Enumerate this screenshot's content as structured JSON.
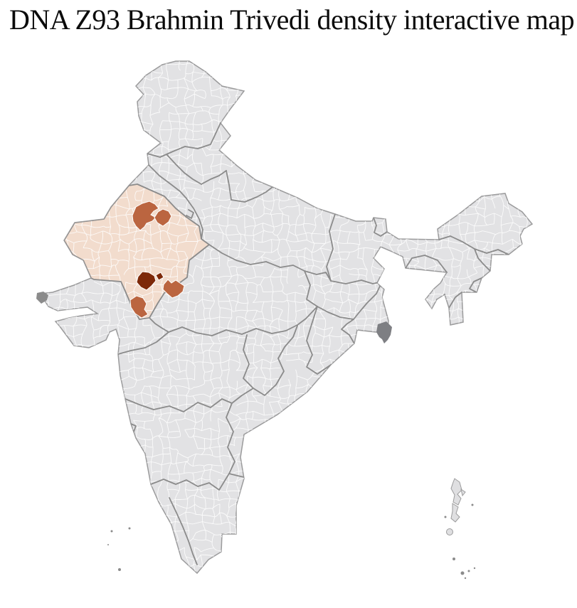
{
  "page": {
    "title": "DNA Z93 Brahmin Trivedi density interactive map"
  },
  "map": {
    "kind": "district-level density choropleth of India",
    "colors": {
      "background": "#ffffff",
      "land": "#e2e2e4",
      "district_border": "#ffffff",
      "state_border": "#8b8b8b",
      "coast_border": "#9b9b9c",
      "highlight_state_fill": "#f2dccd",
      "density_medium": "#bb6540",
      "density_high": "#7d2909",
      "neutral_dark_district": "#7e7f83",
      "island_fill": "#dfdfe1"
    },
    "observed": {
      "highlighted_state_regions": 1,
      "medium_density_districts": 4,
      "high_density_districts": 1,
      "dark_neutral_districts": 1
    }
  }
}
